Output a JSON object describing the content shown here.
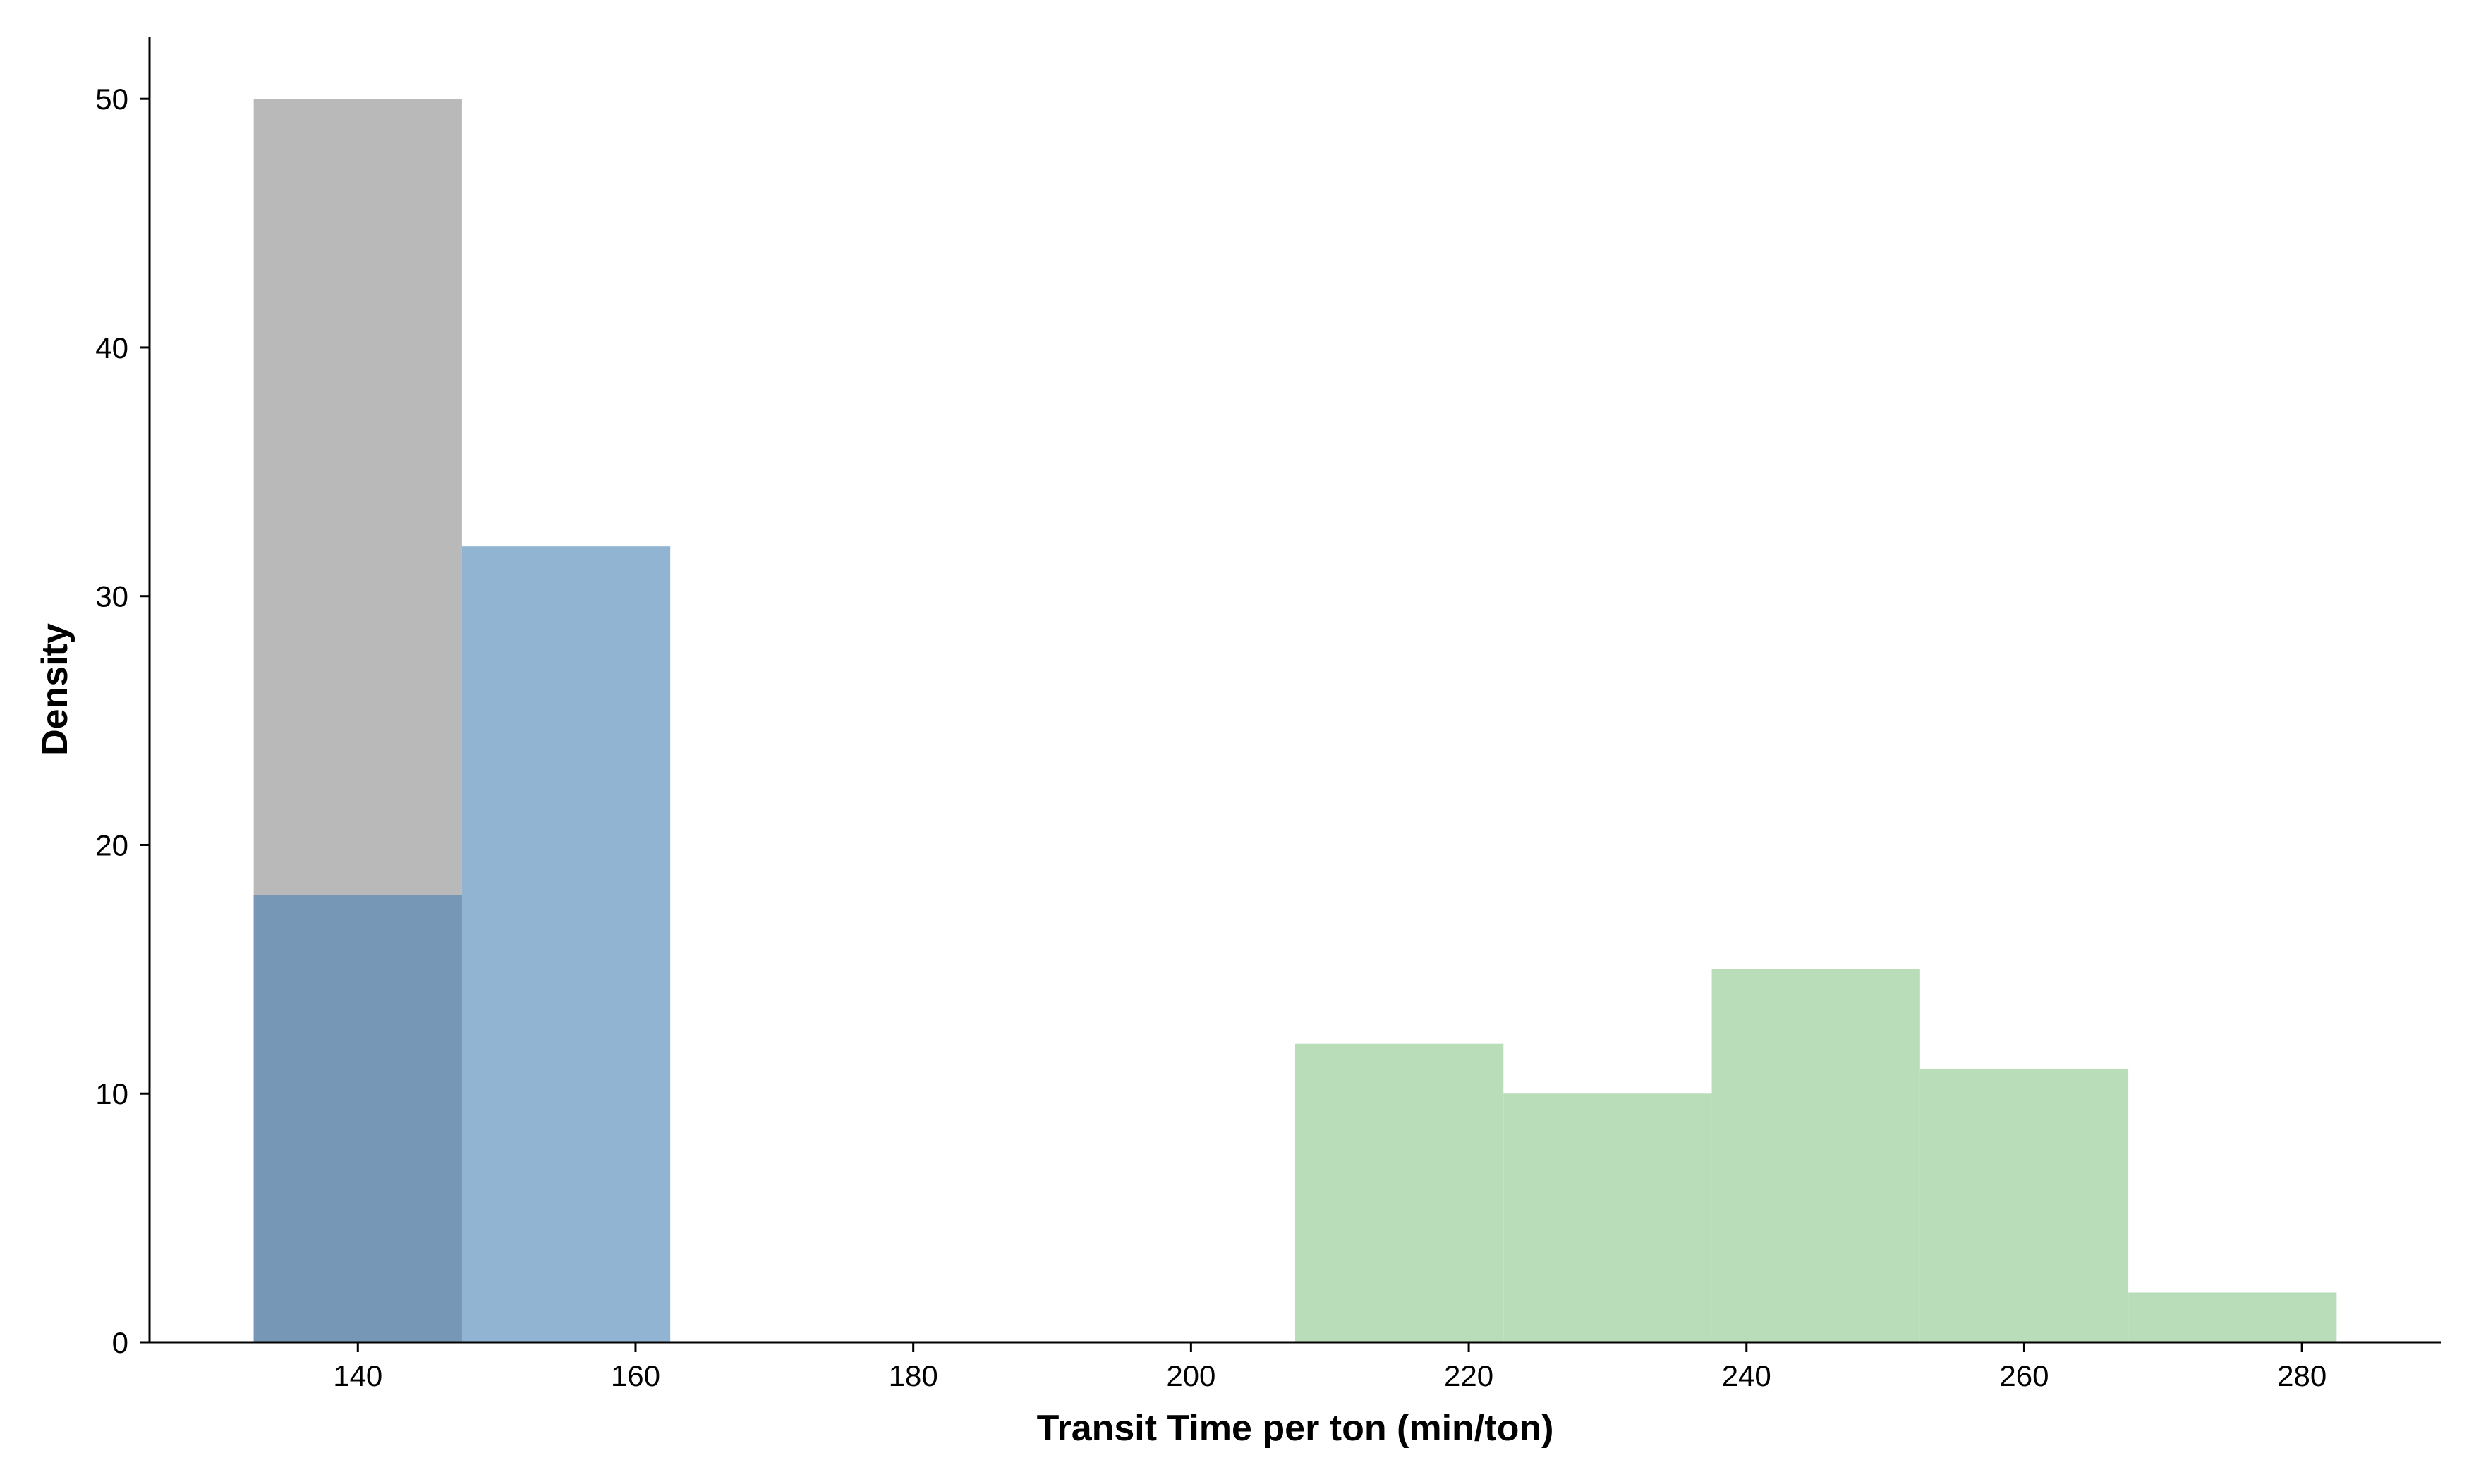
{
  "chart_data": {
    "type": "histogram",
    "title": "",
    "xlabel": "Transit Time per ton (min/ton)",
    "ylabel": "Density",
    "xlim": [
      125,
      290
    ],
    "ylim": [
      0,
      52.5
    ],
    "xticks": [
      140,
      160,
      180,
      200,
      220,
      240,
      260,
      280
    ],
    "yticks": [
      0,
      10,
      20,
      30,
      40,
      50
    ],
    "grid": false,
    "legend": "none",
    "bin_width": 15,
    "series": [
      {
        "color": "#b9b9b9",
        "bins": [
          {
            "x0": 132.5,
            "x1": 147.5,
            "value": 50
          }
        ]
      },
      {
        "color": "#92b4d3",
        "bins": [
          {
            "x0": 132.5,
            "x1": 147.5,
            "value": 18
          },
          {
            "x0": 147.5,
            "x1": 162.5,
            "value": 32
          }
        ]
      },
      {
        "color": "#b8ddb8",
        "bins": [
          {
            "x0": 207.5,
            "x1": 222.5,
            "value": 12
          },
          {
            "x0": 222.5,
            "x1": 237.5,
            "value": 10
          },
          {
            "x0": 237.5,
            "x1": 252.5,
            "value": 15
          },
          {
            "x0": 252.5,
            "x1": 267.5,
            "value": 11
          },
          {
            "x0": 267.5,
            "x1": 282.5,
            "value": 2
          }
        ]
      }
    ],
    "overlap_color": "#7698b6"
  }
}
